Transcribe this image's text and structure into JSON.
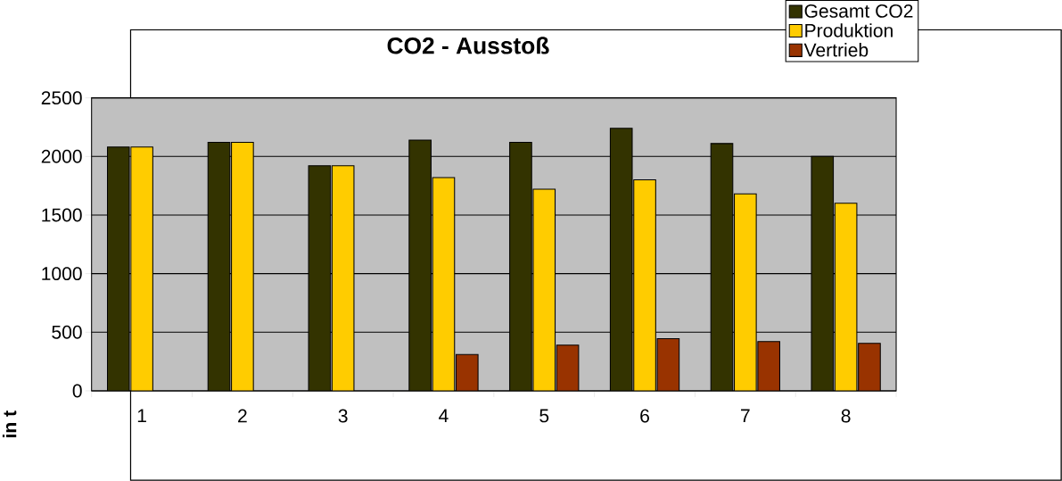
{
  "chart_data": {
    "type": "bar",
    "title": "CO2 - Ausstoß",
    "ylabel": "in t",
    "categories": [
      "1",
      "2",
      "3",
      "4",
      "5",
      "6",
      "7",
      "8"
    ],
    "series": [
      {
        "name": "Gesamt CO2",
        "color": "#333300",
        "values": [
          2080,
          2120,
          1920,
          2140,
          2120,
          2240,
          2110,
          2000
        ]
      },
      {
        "name": "Produktion",
        "color": "#ffcc00",
        "values": [
          2080,
          2120,
          1920,
          1820,
          1720,
          1800,
          1680,
          1600
        ]
      },
      {
        "name": "Vertrieb",
        "color": "#993300",
        "values": [
          null,
          null,
          null,
          310,
          390,
          445,
          420,
          405
        ]
      }
    ],
    "ylim": [
      0,
      2500
    ],
    "yticks": [
      0,
      500,
      1000,
      1500,
      2000,
      2500
    ],
    "grid": "y",
    "legend": "top right"
  }
}
